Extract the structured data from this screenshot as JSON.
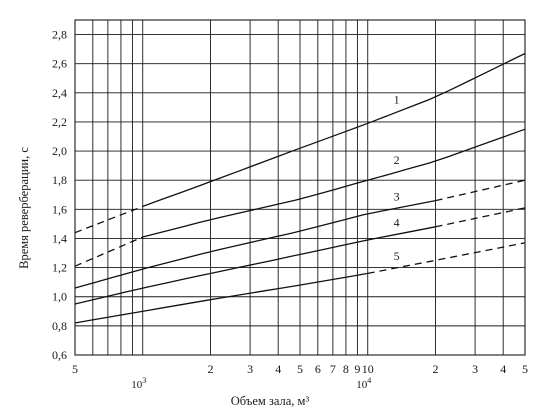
{
  "chart_data": {
    "type": "line",
    "title": "",
    "xlabel": "Объем зала, м³",
    "ylabel": "Время реверберации, с",
    "x_scale": "log",
    "xlim": [
      500,
      50000
    ],
    "ylim": [
      0.6,
      2.9
    ],
    "grid": true,
    "y_ticks": [
      "0,6",
      "0,8",
      "1,0",
      "1,2",
      "1,4",
      "1,6",
      "1,8",
      "2,0",
      "2,2",
      "2,4",
      "2,6",
      "2,8"
    ],
    "x_ticks": [
      {
        "value": 500,
        "label": "5"
      },
      {
        "value": 2000,
        "label": "2"
      },
      {
        "value": 3000,
        "label": "3"
      },
      {
        "value": 4000,
        "label": "4"
      },
      {
        "value": 5000,
        "label": "5"
      },
      {
        "value": 6000,
        "label": "6"
      },
      {
        "value": 7000,
        "label": "7"
      },
      {
        "value": 8000,
        "label": "8"
      },
      {
        "value": 9000,
        "label": "9"
      },
      {
        "value": 10000,
        "label": "10"
      },
      {
        "value": 20000,
        "label": "2"
      },
      {
        "value": 30000,
        "label": "3"
      },
      {
        "value": 40000,
        "label": "4"
      },
      {
        "value": 50000,
        "label": "5"
      }
    ],
    "x_decades": [
      {
        "value": 1000,
        "base": "10",
        "exp": "3"
      },
      {
        "value": 10000,
        "base": "10",
        "exp": "4"
      }
    ],
    "series": [
      {
        "name": "1",
        "x": [
          500,
          1000,
          2000,
          5000,
          10000,
          20000,
          50000
        ],
        "y": [
          1.44,
          1.62,
          1.79,
          2.02,
          2.19,
          2.37,
          2.67
        ],
        "solid_from": 1000
      },
      {
        "name": "2",
        "x": [
          500,
          1000,
          2000,
          5000,
          10000,
          20000,
          50000
        ],
        "y": [
          1.21,
          1.41,
          1.53,
          1.67,
          1.8,
          1.93,
          2.15
        ],
        "solid_from": 1000
      },
      {
        "name": "3",
        "x": [
          500,
          1000,
          2000,
          5000,
          10000,
          20000,
          50000
        ],
        "y": [
          1.06,
          1.19,
          1.31,
          1.45,
          1.57,
          1.66,
          1.8
        ],
        "solid_from": 500,
        "solid_to": 20000
      },
      {
        "name": "4",
        "x": [
          500,
          1000,
          2000,
          5000,
          10000,
          20000,
          50000
        ],
        "y": [
          0.95,
          1.06,
          1.16,
          1.29,
          1.39,
          1.48,
          1.61
        ],
        "solid_from": 500,
        "solid_to": 20000
      },
      {
        "name": "5",
        "x": [
          500,
          1000,
          2000,
          5000,
          10000,
          20000,
          50000
        ],
        "y": [
          0.82,
          0.9,
          0.98,
          1.08,
          1.16,
          1.25,
          1.37
        ],
        "solid_from": 500,
        "solid_to": 10000
      }
    ]
  }
}
